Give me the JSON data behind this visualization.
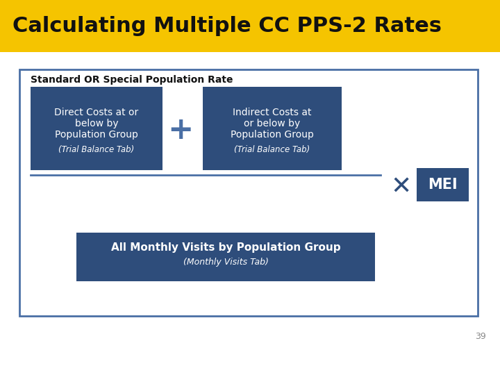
{
  "title": "Calculating Multiple CC PPS-2 Rates",
  "title_bg": "#F5C400",
  "title_color": "#111111",
  "title_fontsize": 22,
  "bg_color": "#ffffff",
  "box_color": "#2E4D7B",
  "outer_box_edge": "#4A6FA5",
  "slide_number": "39",
  "label_standard": "Standard OR Special Population Rate",
  "box1_text": "Direct Costs at or\nbelow by\nPopulation Group",
  "box1_sub": "(Trial Balance Tab)",
  "box2_text": "Indirect Costs at\nor below by\nPopulation Group",
  "box2_sub": "(Trial Balance Tab)",
  "box3_text": "All Monthly Visits by Population Group",
  "box3_sub": "(Monthly Visits Tab)",
  "mei_label": "MEI",
  "plus_symbol": "+",
  "times_symbol": "✕"
}
